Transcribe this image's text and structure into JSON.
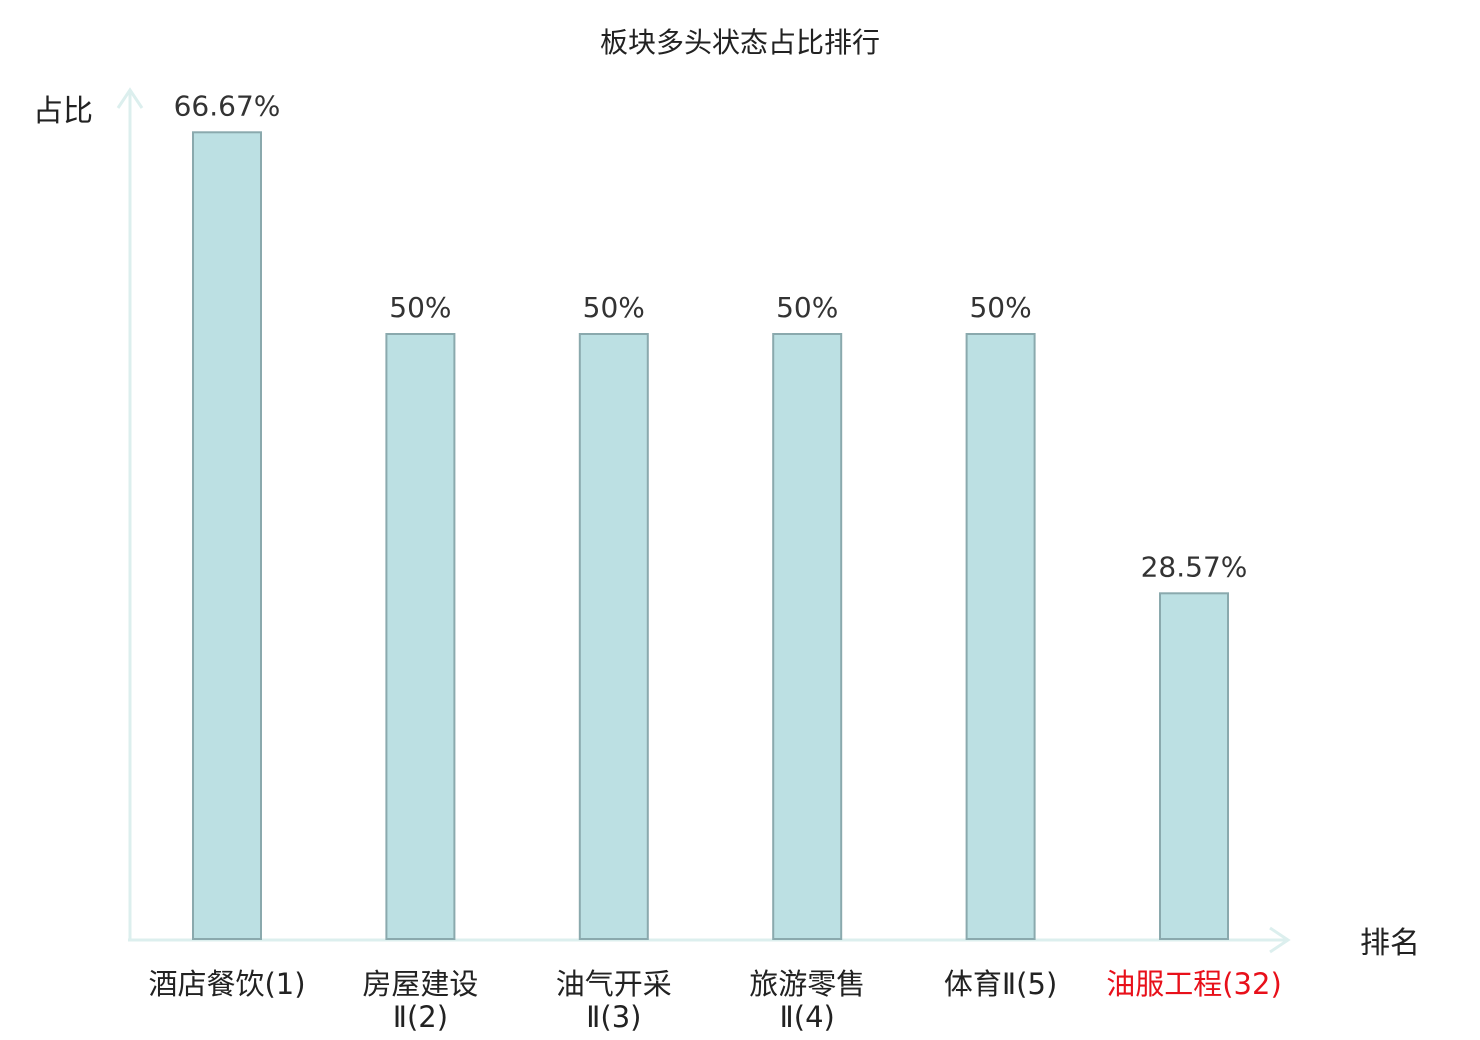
{
  "chart_data": {
    "type": "bar",
    "title": "板块多头状态占比排行",
    "xlabel": "排名",
    "ylabel": "占比",
    "categories": [
      [
        "酒店餐饮(1)"
      ],
      [
        "房屋建设",
        "Ⅱ(2)"
      ],
      [
        "油气开采",
        "Ⅱ(3)"
      ],
      [
        "旅游零售",
        "Ⅱ(4)"
      ],
      [
        "体育Ⅱ(5)"
      ],
      [
        "油服工程(32)"
      ]
    ],
    "values": [
      66.67,
      50,
      50,
      50,
      50,
      28.57
    ],
    "value_labels": [
      "66.67%",
      "50%",
      "50%",
      "50%",
      "50%",
      "28.57%"
    ],
    "highlight_index": 5,
    "ylim": [
      0,
      70
    ],
    "grid": false,
    "colors": {
      "bar_fill": "#bce0e3",
      "bar_stroke": "#8aa9ad",
      "axis": "#dcefee",
      "text": "#222222",
      "value_text": "#333333",
      "highlight_text": "#e8101a"
    }
  }
}
